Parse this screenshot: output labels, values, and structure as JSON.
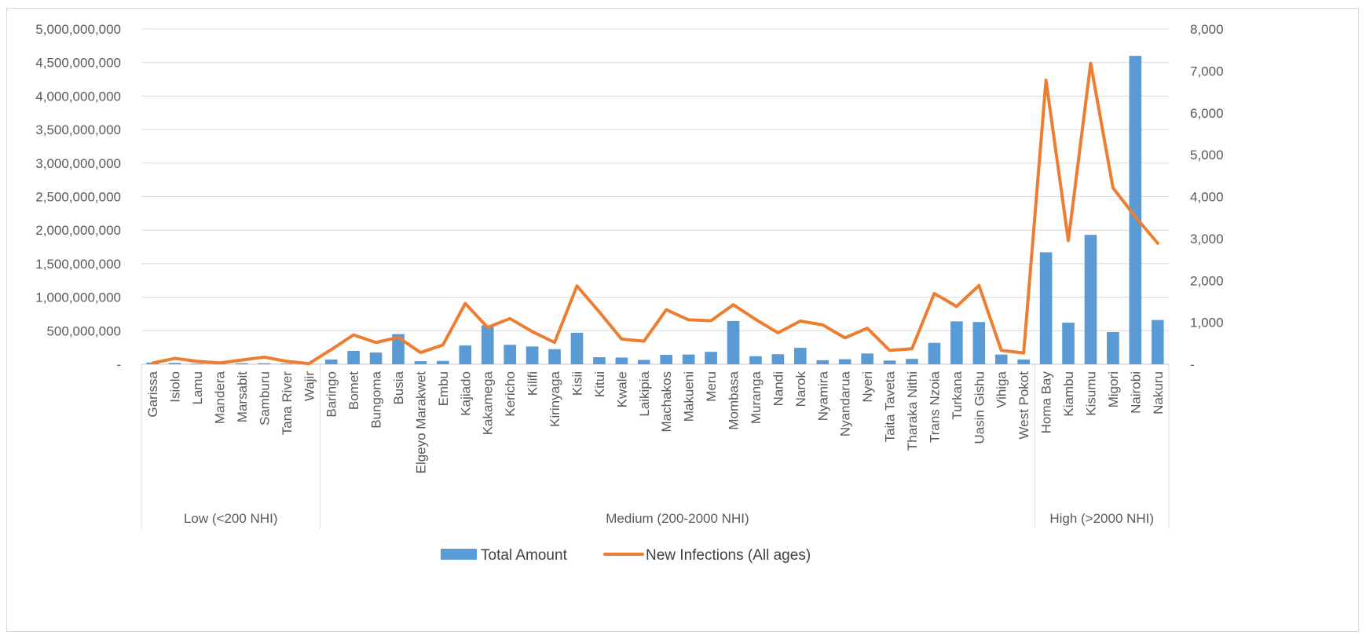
{
  "chart_data": {
    "type": "bar",
    "title": "",
    "xlabel": "",
    "ylabel": "",
    "y2label": "",
    "ylim": [
      0,
      5000000000
    ],
    "y2lim": [
      0,
      8000
    ],
    "y_ticks": [
      "-",
      "500,000,000",
      "1,000,000,000",
      "1,500,000,000",
      "2,000,000,000",
      "2,500,000,000",
      "3,000,000,000",
      "3,500,000,000",
      "4,000,000,000",
      "4,500,000,000",
      "5,000,000,000"
    ],
    "y2_ticks": [
      "-",
      "1,000",
      "2,000",
      "3,000",
      "4,000",
      "5,000",
      "6,000",
      "7,000",
      "8,000"
    ],
    "grid": true,
    "legend_position": "bottom",
    "categories": [
      "Garissa",
      "Isiolo",
      "Lamu",
      "Mandera",
      "Marsabit",
      "Samburu",
      "Tana River",
      "Wajir",
      "Baringo",
      "Bomet",
      "Bungoma",
      "Busia",
      "Elgeyo Marakwet",
      "Embu",
      "Kajiado",
      "Kakamega",
      "Kericho",
      "Kilifi",
      "Kirinyaga",
      "Kisii",
      "Kitui",
      "Kwale",
      "Laikipia",
      "Machakos",
      "Makueni",
      "Meru",
      "Mombasa",
      "Muranga",
      "Nandi",
      "Narok",
      "Nyamira",
      "Nyandarua",
      "Nyeri",
      "Taita Taveta",
      "Tharaka Nithi",
      "Trans Nzoia",
      "Turkana",
      "Uasin Gishu",
      "Vihiga",
      "West Pokot",
      "Homa Bay",
      "Kiambu",
      "Kisumu",
      "Migori",
      "Nairobi",
      "Nakuru"
    ],
    "groups": [
      {
        "label": "Low (<200 NHI)",
        "start": 0,
        "end": 7
      },
      {
        "label": "Medium (200-2000 NHI)",
        "start": 8,
        "end": 39
      },
      {
        "label": "High (>2000 NHI)",
        "start": 40,
        "end": 45
      }
    ],
    "series": [
      {
        "name": "Total Amount",
        "type": "bar",
        "axis": "left",
        "color": "#5b9bd5",
        "values": [
          25000000,
          20000000,
          10000000,
          10000000,
          15000000,
          15000000,
          10000000,
          5000000,
          70000000,
          200000000,
          175000000,
          450000000,
          45000000,
          50000000,
          280000000,
          580000000,
          290000000,
          265000000,
          225000000,
          470000000,
          105000000,
          100000000,
          65000000,
          140000000,
          145000000,
          185000000,
          645000000,
          120000000,
          150000000,
          245000000,
          60000000,
          75000000,
          160000000,
          55000000,
          80000000,
          320000000,
          640000000,
          630000000,
          145000000,
          70000000,
          1670000000,
          620000000,
          1930000000,
          480000000,
          4600000000,
          660000000
        ]
      },
      {
        "name": "New Infections (All ages)",
        "type": "line",
        "axis": "right",
        "color": "#ed7d31",
        "values": [
          30,
          140,
          70,
          30,
          100,
          170,
          70,
          15,
          350,
          700,
          520,
          640,
          280,
          460,
          1450,
          880,
          1090,
          780,
          520,
          1870,
          1250,
          600,
          550,
          1300,
          1060,
          1040,
          1420,
          1070,
          750,
          1030,
          940,
          630,
          860,
          330,
          370,
          1690,
          1380,
          1880,
          330,
          270,
          6780,
          2950,
          7180,
          4210,
          3520,
          2890
        ]
      }
    ]
  }
}
